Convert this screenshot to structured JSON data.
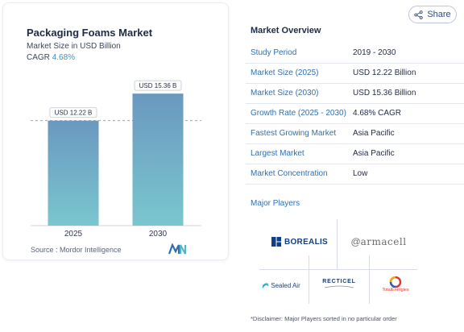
{
  "card": {
    "title": "Packaging Foams Market",
    "subtitle": "Market Size in USD Billion",
    "cagr_label": "CAGR",
    "cagr_value": "4.68%",
    "source": "Source : Mordor Intelligence"
  },
  "chart_data": {
    "type": "bar",
    "categories": [
      "2025",
      "2030"
    ],
    "values": [
      12.22,
      15.36
    ],
    "data_labels": [
      "USD 12.22 B",
      "USD 15.36 B"
    ],
    "ylim": [
      0,
      16.5
    ],
    "reference_line_value": 12.22,
    "bar_color_top": "#6a98bf",
    "bar_color_bottom": "#7ac6cf"
  },
  "share": {
    "label": "Share"
  },
  "overview": {
    "title": "Market Overview",
    "rows": [
      {
        "label": "Study Period",
        "value": "2019 - 2030"
      },
      {
        "label": "Market Size (2025)",
        "value": "USD 12.22 Billion"
      },
      {
        "label": "Market Size (2030)",
        "value": "USD 15.36 Billion"
      },
      {
        "label": "Growth Rate (2025 - 2030)",
        "value": "4.68% CAGR"
      },
      {
        "label": "Fastest Growing Market",
        "value": "Asia Pacific"
      },
      {
        "label": "Largest Market",
        "value": "Asia Pacific"
      },
      {
        "label": "Market Concentration",
        "value": "Low"
      }
    ],
    "players_label": "Major Players"
  },
  "players": {
    "borealis": "BOREALIS",
    "armacell": "armacell",
    "sealedair": "Sealed Air",
    "recticel": "RECTICEL",
    "totalenergies": "TotalEnergies"
  },
  "disclaimer": "*Disclaimer: Major Players sorted in no particular order",
  "colors": {
    "accent": "#2f6fb0",
    "title": "#1f2a44"
  }
}
